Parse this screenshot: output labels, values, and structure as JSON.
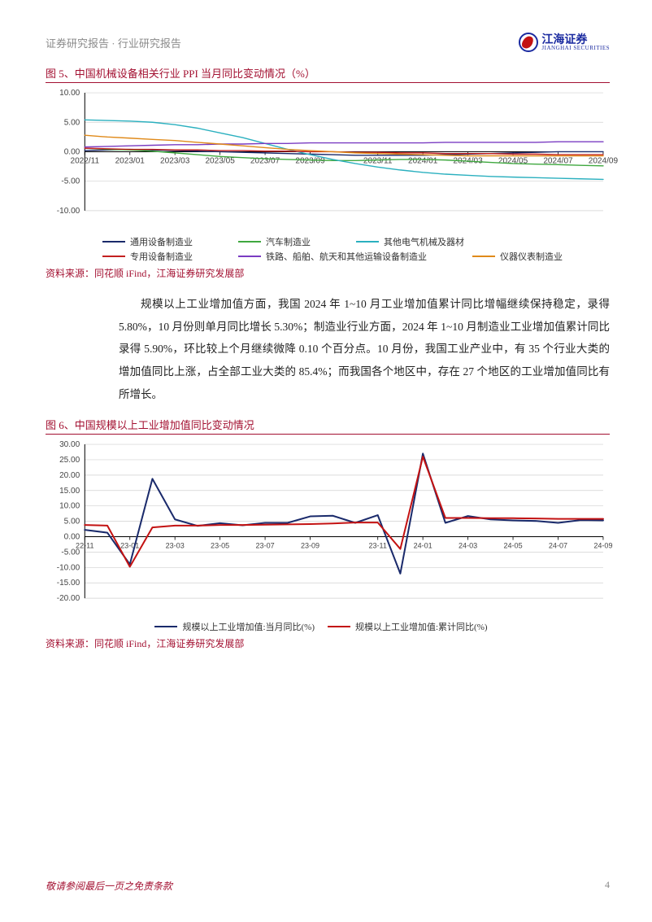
{
  "header": {
    "doc_type": "证券研究报告 · 行业研究报告",
    "company_cn": "江海证券",
    "company_en": "JIANGHAI SECURITIES"
  },
  "figure5": {
    "title": "图 5、中国机械设备相关行业 PPI 当月同比变动情况（%）",
    "type": "line",
    "ylim": [
      -10,
      10
    ],
    "yticks": [
      -10,
      -5,
      0,
      5,
      10
    ],
    "xlabels": [
      "2022/11",
      "2023/01",
      "2023/03",
      "2023/05",
      "2023/07",
      "2023/09",
      "2023/11",
      "2024/01",
      "2024/03",
      "2024/05",
      "2024/07",
      "2024/09"
    ],
    "grid_color": "#d0d0d0",
    "background_color": "#ffffff",
    "axis_color": "#000000",
    "label_fontsize": 10,
    "line_width": 1.4,
    "series": [
      {
        "name": "通用设备制造业",
        "color": "#1a2a6b",
        "y": [
          0.2,
          0.3,
          0.4,
          0.3,
          0.2,
          0.1,
          0.0,
          -0.1,
          -0.2,
          -0.3,
          -0.4,
          -0.5,
          -0.6,
          -0.6,
          -0.6,
          -0.6,
          -0.5,
          -0.4,
          -0.3,
          -0.2,
          -0.1,
          0.0,
          0.0,
          0.0
        ]
      },
      {
        "name": "汽车制造业",
        "color": "#3fa83f",
        "y": [
          0.6,
          0.4,
          0.3,
          0.1,
          -0.2,
          -0.5,
          -0.8,
          -1.0,
          -1.2,
          -1.3,
          -1.4,
          -1.5,
          -1.5,
          -1.4,
          -1.3,
          -1.3,
          -1.4,
          -1.6,
          -1.8,
          -2.0,
          -2.1,
          -2.2,
          -2.3,
          -2.4
        ]
      },
      {
        "name": "其他电气机械及器材",
        "color": "#2bb0bf",
        "y": [
          5.4,
          5.3,
          5.2,
          5.0,
          4.6,
          4.0,
          3.2,
          2.4,
          1.4,
          0.4,
          -0.5,
          -1.3,
          -2.0,
          -2.6,
          -3.1,
          -3.5,
          -3.8,
          -4.0,
          -4.2,
          -4.3,
          -4.4,
          -4.5,
          -4.6,
          -4.7
        ]
      },
      {
        "name": "专用设备制造业",
        "color": "#c32020",
        "y": [
          0.6,
          0.5,
          0.4,
          0.4,
          0.3,
          0.3,
          0.2,
          0.2,
          0.1,
          0.1,
          0.0,
          0.0,
          -0.1,
          -0.1,
          -0.2,
          -0.2,
          -0.3,
          -0.3,
          -0.3,
          -0.4,
          -0.4,
          -0.5,
          -0.5,
          -0.5
        ]
      },
      {
        "name": "铁路、船舶、航天和其他运输设备制造业",
        "color": "#7a3cc2",
        "y": [
          0.8,
          0.9,
          1.0,
          1.1,
          1.2,
          1.2,
          1.3,
          1.3,
          1.4,
          1.4,
          1.5,
          1.5,
          1.5,
          1.5,
          1.5,
          1.5,
          1.6,
          1.6,
          1.6,
          1.6,
          1.6,
          1.7,
          1.7,
          1.7
        ]
      },
      {
        "name": "仪器仪表制造业",
        "color": "#e08a1a",
        "y": [
          2.8,
          2.5,
          2.3,
          2.1,
          1.9,
          1.6,
          1.3,
          1.0,
          0.7,
          0.4,
          0.2,
          0.0,
          -0.2,
          -0.3,
          -0.4,
          -0.5,
          -0.6,
          -0.7,
          -0.7,
          -0.7,
          -0.7,
          -0.7,
          -0.7,
          -0.7
        ]
      }
    ],
    "source": "资料来源：同花顺 iFind，江海证券研究发展部"
  },
  "paragraph": "规模以上工业增加值方面，我国 2024 年 1~10 月工业增加值累计同比增幅继续保持稳定，录得 5.80%，10 月份则单月同比增长 5.30%；制造业行业方面，2024 年 1~10 月制造业工业增加值累计同比录得 5.90%，环比较上个月继续微降 0.10 个百分点。10 月份，我国工业产业中，有 35 个行业大类的增加值同比上涨，占全部工业大类的 85.4%；而我国各个地区中，存在 27 个地区的工业增加值同比有所增长。",
  "figure6": {
    "title": "图 6、中国规模以上工业增加值同比变动情况",
    "type": "line",
    "ylim": [
      -20,
      30
    ],
    "yticks": [
      -20,
      -15,
      -10,
      -5,
      0,
      5,
      10,
      15,
      20,
      25,
      30
    ],
    "xlabels": [
      "22-11",
      "23-01",
      "23-03",
      "23-05",
      "23-07",
      "23-09",
      "23-11",
      "24-01",
      "24-03",
      "24-05",
      "24-07",
      "24-09"
    ],
    "grid_color": "#d0d0d0",
    "background_color": "#ffffff",
    "axis_color": "#000000",
    "label_fontsize": 10,
    "line_width": 2.0,
    "series": [
      {
        "name": "规模以上工业增加值:当月同比(%)",
        "color": "#1a2a6b",
        "y": [
          2.2,
          1.3,
          -9.0,
          18.8,
          5.6,
          3.5,
          4.4,
          3.7,
          4.5,
          4.5,
          6.6,
          6.8,
          4.5,
          7.0,
          -12.0,
          27.0,
          4.5,
          6.7,
          5.6,
          5.3,
          5.1,
          4.5,
          5.4,
          5.3
        ]
      },
      {
        "name": "规模以上工业增加值:累计同比(%)",
        "color": "#c31212",
        "y": [
          3.8,
          3.6,
          -9.8,
          3.0,
          3.6,
          3.6,
          3.8,
          3.8,
          3.9,
          4.0,
          4.1,
          4.3,
          4.6,
          4.6,
          -4.0,
          26.0,
          6.1,
          6.1,
          6.0,
          6.0,
          5.9,
          5.8,
          5.8,
          5.8
        ]
      }
    ],
    "source": "资料来源：同花顺 iFind，江海证券研究发展部"
  },
  "footer": {
    "note": "敬请参阅最后一页之免责条款",
    "page": "4"
  }
}
